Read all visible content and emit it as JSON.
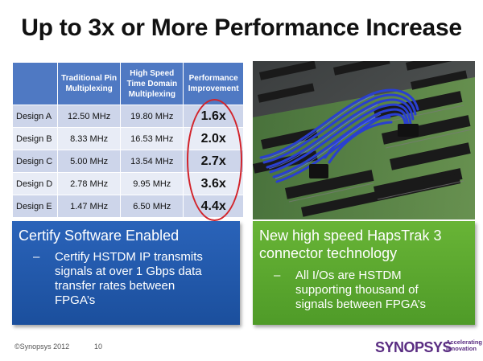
{
  "title": "Up to 3x or More Performance Increase",
  "table": {
    "headers": [
      "",
      "Traditional Pin Multiplexing",
      "High Speed Time Domain Multiplexing",
      "Performance Improvement"
    ],
    "rows": [
      {
        "design": "Design A",
        "tpm": "12.50 MHz",
        "hstdm": "19.80 MHz",
        "improvement": "1.6x"
      },
      {
        "design": "Design B",
        "tpm": "8.33 MHz",
        "hstdm": "16.53 MHz",
        "improvement": "2.0x"
      },
      {
        "design": "Design C",
        "tpm": "5.00 MHz",
        "hstdm": "13.54 MHz",
        "improvement": "2.7x"
      },
      {
        "design": "Design D",
        "tpm": "2.78 MHz",
        "hstdm": "9.95 MHz",
        "improvement": "3.6x"
      },
      {
        "design": "Design E",
        "tpm": "1.47 MHz",
        "hstdm": "6.50 MHz",
        "improvement": "4.4x"
      }
    ]
  },
  "left_box": {
    "heading": "Certify Software Enabled",
    "bullet": [
      "Certify HSTDM IP transmits",
      "signals at over 1 Gbps data",
      "transfer rates between",
      "FPGA’s"
    ]
  },
  "right_box": {
    "heading": [
      "New high speed HapsTrak 3",
      "connector technology"
    ],
    "bullet": [
      "All I/Os are HSTDM",
      "supporting thousand of",
      "signals between FPGA’s"
    ]
  },
  "footer": {
    "copyright": "©Synopsys 2012",
    "page": "10",
    "logo_word": "SYNOPSYS",
    "logo_tag": [
      "Accelerating",
      "Innovation"
    ]
  },
  "colors": {
    "header_blue": "#4f79c3",
    "row_dark": "#cdd5ea",
    "row_light": "#e8ecf6",
    "oval_red": "#d2232a",
    "box_blue": "#2a63b9",
    "box_green": "#68b436",
    "brand_purple": "#5a2d82"
  }
}
